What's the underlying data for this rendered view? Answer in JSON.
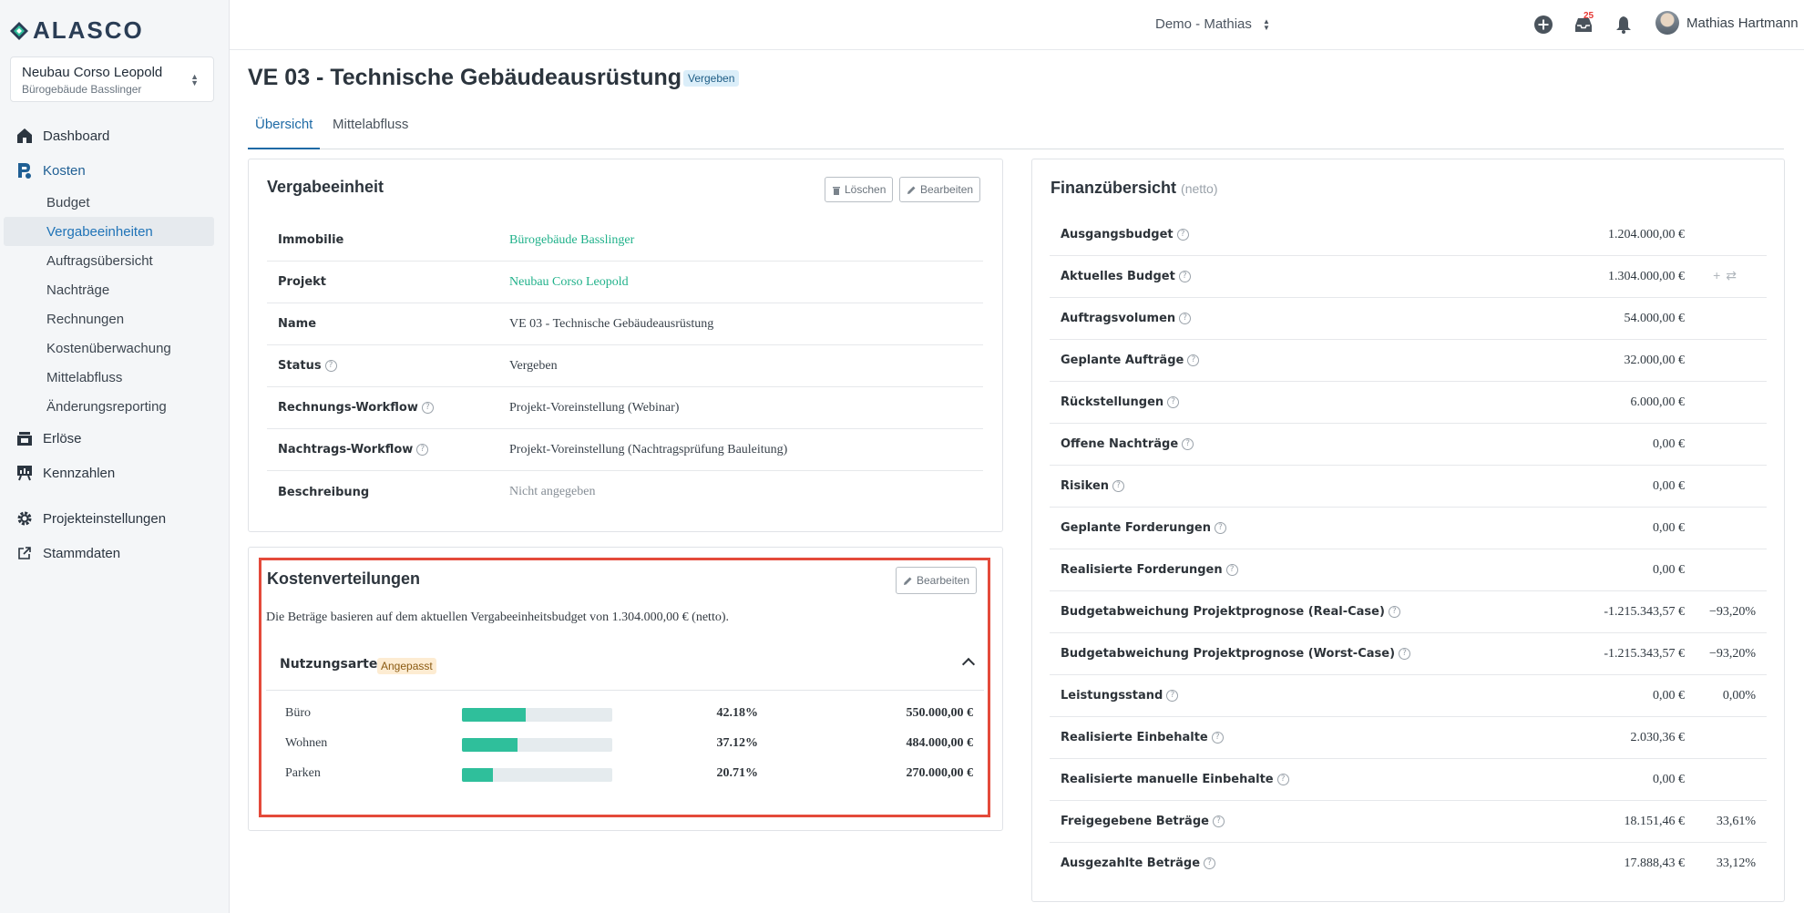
{
  "brand": {
    "name": "ALASCO"
  },
  "project": {
    "name": "Neubau Corso Leopold",
    "building": "Bürogebäude Basslinger"
  },
  "nav": {
    "dashboard": "Dashboard",
    "kosten": "Kosten",
    "kosten_items": [
      "Budget",
      "Vergabeeinheiten",
      "Auftragsübersicht",
      "Nachträge",
      "Rechnungen",
      "Kostenüberwachung",
      "Mittelabfluss",
      "Änderungsreporting"
    ],
    "erloese": "Erlöse",
    "kennzahlen": "Kennzahlen",
    "projekteinstellungen": "Projekteinstellungen",
    "stammdaten": "Stammdaten"
  },
  "topbar": {
    "account": "Demo - Mathias",
    "notification_count": "25",
    "user_name": "Mathias Hartmann"
  },
  "page": {
    "title": "VE 03 - Technische Gebäudeausrüstung",
    "status": "Vergeben"
  },
  "tabs": [
    "Übersicht",
    "Mittelabfluss"
  ],
  "vergabe": {
    "title": "Vergabeeinheit",
    "delete_label": "Löschen",
    "edit_label": "Bearbeiten",
    "rows": [
      {
        "label": "Immobilie",
        "value": "Bürogebäude Basslinger"
      },
      {
        "label": "Projekt",
        "value": "Neubau Corso Leopold"
      },
      {
        "label": "Name",
        "value": "VE 03 - Technische Gebäudeausrüstung"
      },
      {
        "label": "Status",
        "value": "Vergeben"
      },
      {
        "label": "Rechnungs-Workflow",
        "value": "Projekt-Voreinstellung (Webinar)"
      },
      {
        "label": "Nachtrags-Workflow",
        "value": "Projekt-Voreinstellung (Nachtragsprüfung Bauleitung)"
      },
      {
        "label": "Beschreibung",
        "value": "Nicht angegeben"
      }
    ]
  },
  "kosten": {
    "title": "Kostenverteilungen",
    "edit_label": "Bearbeiten",
    "description": "Die Beträge basieren auf dem aktuellen Vergabeeinheitsbudget von 1.304.000,00 € (netto).",
    "group_title": "Nutzungsarten",
    "group_badge": "Angepasst",
    "rows": [
      {
        "name": "Büro",
        "percent": "42.18%",
        "amount": "550.000,00 €",
        "share": 42.18
      },
      {
        "name": "Wohnen",
        "percent": "37.12%",
        "amount": "484.000,00 €",
        "share": 37.12
      },
      {
        "name": "Parken",
        "percent": "20.71%",
        "amount": "270.000,00 €",
        "share": 20.71
      }
    ]
  },
  "finanz": {
    "title": "Finanzübersicht",
    "subtitle": "(netto)",
    "rows": [
      {
        "label": "Ausgangsbudget",
        "amount": "1.204.000,00 €",
        "percent": ""
      },
      {
        "label": "Aktuelles Budget",
        "amount": "1.304.000,00 €",
        "percent": ""
      },
      {
        "label": "Auftragsvolumen",
        "amount": "54.000,00 €",
        "percent": ""
      },
      {
        "label": "Geplante Aufträge",
        "amount": "32.000,00 €",
        "percent": ""
      },
      {
        "label": "Rückstellungen",
        "amount": "6.000,00 €",
        "percent": ""
      },
      {
        "label": "Offene Nachträge",
        "amount": "0,00 €",
        "percent": ""
      },
      {
        "label": "Risiken",
        "amount": "0,00 €",
        "percent": ""
      },
      {
        "label": "Geplante Forderungen",
        "amount": "0,00 €",
        "percent": ""
      },
      {
        "label": "Realisierte Forderungen",
        "amount": "0,00 €",
        "percent": ""
      },
      {
        "label": "Budgetabweichung Projektprognose (Real-Case)",
        "amount": "-1.215.343,57 €",
        "percent": "−93,20%"
      },
      {
        "label": "Budgetabweichung Projektprognose (Worst-Case)",
        "amount": "-1.215.343,57 €",
        "percent": "−93,20%"
      },
      {
        "label": "Leistungsstand",
        "amount": "0,00 €",
        "percent": "0,00%"
      },
      {
        "label": "Realisierte Einbehalte",
        "amount": "2.030,36 €",
        "percent": ""
      },
      {
        "label": "Realisierte manuelle Einbehalte",
        "amount": "0,00 €",
        "percent": ""
      },
      {
        "label": "Freigegebene Beträge",
        "amount": "18.151,46 €",
        "percent": "33,61%"
      },
      {
        "label": "Ausgezahlte Beträge",
        "amount": "17.888,43 €",
        "percent": "33,12%"
      }
    ]
  },
  "colors": {
    "accent": "#1e6aa5",
    "link": "#20b18a",
    "bar": "#2fbf9b",
    "highlight": "#e44a3a"
  }
}
